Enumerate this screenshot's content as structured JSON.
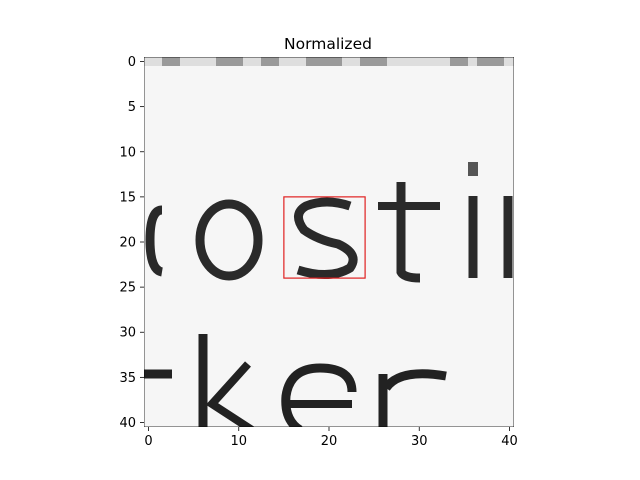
{
  "chart_data": {
    "type": "heatmap",
    "title": "Normalized",
    "colormap": "gray",
    "grid": false,
    "xlim": [
      -0.5,
      40.5
    ],
    "ylim": [
      40.5,
      -0.5
    ],
    "x_ticks": [
      0,
      10,
      20,
      30,
      40
    ],
    "y_ticks": [
      0,
      5,
      10,
      15,
      20,
      25,
      30,
      35,
      40
    ],
    "x_tick_labels": [
      "0",
      "10",
      "20",
      "30",
      "40"
    ],
    "y_tick_labels": [
      "0",
      "5",
      "10",
      "15",
      "20",
      "25",
      "30",
      "35",
      "40"
    ],
    "image_text_content": "text crop showing the letters \"ostil\" on the upper line and \"ker\" on the lower line",
    "highlight_box": {
      "x0": 15,
      "x1": 24,
      "y0": 15,
      "y1": 24,
      "color": "#e02020"
    }
  }
}
